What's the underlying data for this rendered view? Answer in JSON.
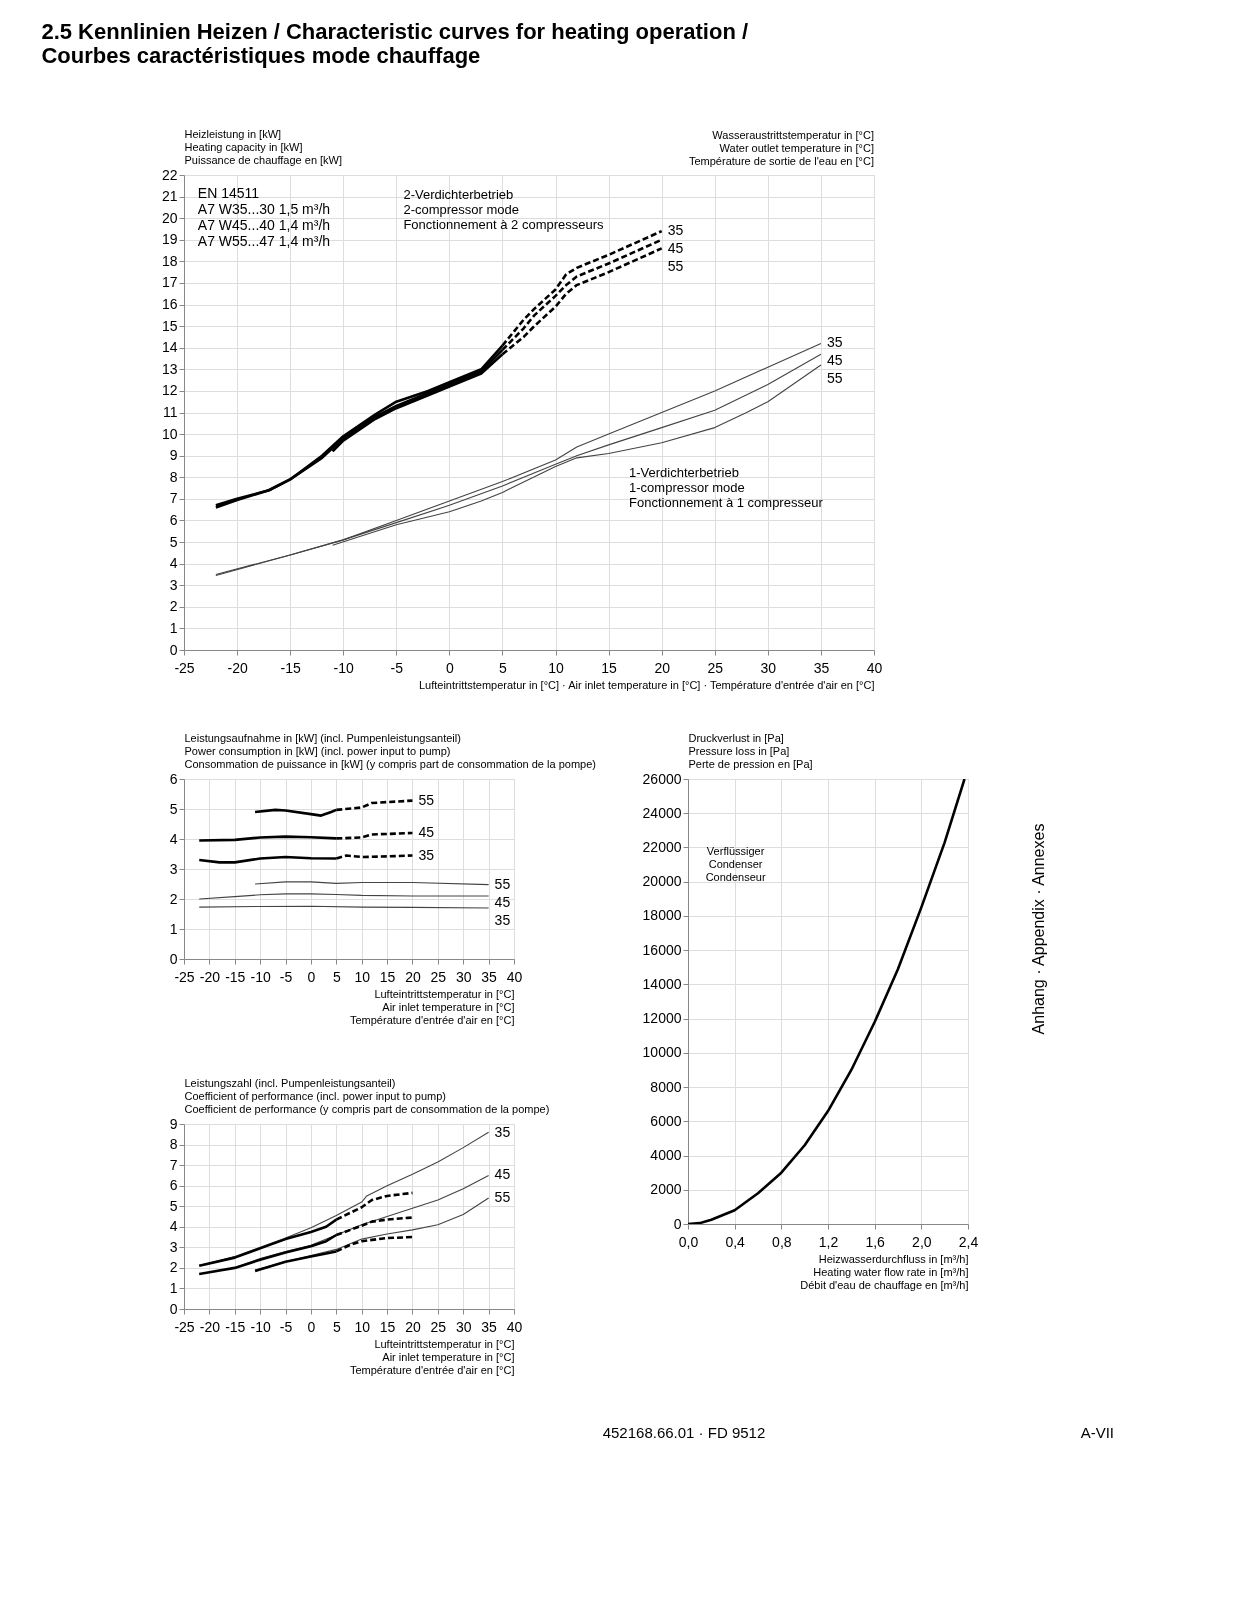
{
  "chart_data": [
    {
      "type": "line",
      "title": "2.5 Kennlinien Heizen / Characteristic curves for heating operation /\nCourbes caractéristiques mode chauffage",
      "ylabel": "Heizleistung in [kW]\nHeating capacity in [kW]\nPuissance de chauffage en [kW]",
      "xlabel": "Lufteintrittstemperatur in [°C] · Air inlet temperature in [°C] · Température d'entrée d'air en [°C]",
      "legend_title": "Wasseraustrittstemperatur in [°C]\nWater outlet temperature in [°C]\nTempérature de sortie de l'eau en [°C]",
      "xlim": [
        -25,
        40
      ],
      "xticks": [
        -25,
        -20,
        -15,
        -10,
        -5,
        0,
        5,
        10,
        15,
        20,
        25,
        30,
        35,
        40
      ],
      "ylim": [
        0,
        22
      ],
      "yticks": [
        0,
        1,
        2,
        3,
        4,
        5,
        6,
        7,
        8,
        9,
        10,
        11,
        12,
        13,
        14,
        15,
        16,
        17,
        18,
        19,
        20,
        21,
        22
      ],
      "grid": true,
      "series": [
        {
          "color": "#000000",
          "line_style": "solid",
          "x": [
            -22,
            -20,
            -17,
            -15,
            -12,
            -10,
            -7,
            -5,
            -2,
            0,
            3,
            5
          ],
          "values": [
            6.7,
            7.0,
            7.4,
            7.9,
            9.0,
            9.9,
            10.9,
            11.5,
            12.0,
            12.4,
            13.0,
            14.1
          ]
        },
        {
          "color": "#000000",
          "line_style": "solid",
          "x": [
            -22,
            -20,
            -17,
            -15,
            -12,
            -10,
            -7,
            -5,
            -2,
            0,
            3,
            5
          ],
          "values": [
            6.6,
            6.95,
            7.4,
            7.9,
            8.9,
            9.8,
            10.8,
            11.3,
            11.9,
            12.3,
            12.9,
            13.9
          ]
        },
        {
          "color": "#000000",
          "line_style": "solid",
          "x": [
            -11,
            -10,
            -7,
            -5,
            -2,
            0,
            3,
            5
          ],
          "values": [
            9.2,
            9.7,
            10.7,
            11.2,
            11.8,
            12.2,
            12.8,
            13.7
          ]
        },
        {
          "name": "35",
          "color": "#000000",
          "line_style": "dashed",
          "x": [
            5,
            7,
            8,
            10,
            11,
            12,
            15,
            20
          ],
          "values": [
            14.1,
            15.3,
            15.8,
            16.7,
            17.4,
            17.7,
            18.3,
            19.4
          ]
        },
        {
          "name": "45",
          "color": "#000000",
          "line_style": "dashed",
          "x": [
            5,
            7,
            8,
            10,
            11,
            12,
            15,
            20
          ],
          "values": [
            13.9,
            14.9,
            15.5,
            16.4,
            16.9,
            17.3,
            17.9,
            19.0
          ]
        },
        {
          "name": "55",
          "color": "#000000",
          "line_style": "dashed",
          "x": [
            5,
            7,
            8,
            10,
            11,
            12,
            15,
            20
          ],
          "values": [
            13.7,
            14.5,
            15.0,
            15.9,
            16.5,
            16.9,
            17.5,
            18.6
          ]
        },
        {
          "name": "35",
          "color": "#444444",
          "line_style": "solid",
          "x": [
            -22,
            -15,
            -10,
            -5,
            0,
            5,
            10,
            12,
            15,
            20,
            25,
            30,
            35
          ],
          "values": [
            3.5,
            4.4,
            5.1,
            6.0,
            6.9,
            7.8,
            8.8,
            9.4,
            10.0,
            11.0,
            12.0,
            13.1,
            14.2
          ]
        },
        {
          "name": "45",
          "color": "#444444",
          "line_style": "solid",
          "x": [
            -22,
            -15,
            -10,
            -5,
            0,
            5,
            10,
            12,
            15,
            20,
            25,
            30,
            35
          ],
          "values": [
            3.45,
            4.4,
            5.1,
            5.9,
            6.7,
            7.6,
            8.6,
            9.0,
            9.5,
            10.3,
            11.1,
            12.3,
            13.7
          ]
        },
        {
          "name": "55",
          "color": "#444444",
          "line_style": "solid",
          "x": [
            -11,
            -5,
            0,
            3,
            5,
            10,
            12,
            15,
            20,
            25,
            28,
            30,
            35
          ],
          "values": [
            4.85,
            5.8,
            6.4,
            6.9,
            7.3,
            8.5,
            8.9,
            9.1,
            9.6,
            10.3,
            11.0,
            11.5,
            13.2
          ]
        }
      ],
      "annotations": [
        "EN 14511\nA7 W35...30   1,5 m³/h\nA7 W45...40   1,4 m³/h\nA7 W55...47   1,4 m³/h",
        "2-Verdichterbetrieb\n2-compressor mode\nFonctionnement à 2 compresseurs",
        "1-Verdichterbetrieb\n1-compressor mode\nFonctionnement à 1 compresseur",
        "452168.66.01 · FD 9512",
        "A-VII",
        "Anhang · Appendix · Annexes"
      ]
    },
    {
      "type": "line",
      "ylabel": "Leistungsaufnahme in [kW] (incl. Pumpenleistungsanteil)\nPower consumption in [kW] (incl. power input to pump)\nConsommation de puissance in [kW] (y compris part de consommation de la pompe)",
      "xlabel": "Lufteintrittstemperatur in [°C]\nAir inlet temperature in [°C]\nTempérature d'entrée d'air en [°C]",
      "xlim": [
        -25,
        40
      ],
      "xticks": [
        -25,
        -20,
        -15,
        -10,
        -5,
        0,
        5,
        10,
        15,
        20,
        25,
        30,
        35,
        40
      ],
      "ylim": [
        0,
        6
      ],
      "yticks": [
        0,
        1,
        2,
        3,
        4,
        5,
        6
      ],
      "grid": true,
      "series": [
        {
          "color": "#000000",
          "line_style": "solid",
          "x": [
            -11,
            -7,
            -5,
            0,
            2,
            4,
            5
          ],
          "values": [
            4.9,
            4.97,
            4.95,
            4.83,
            4.78,
            4.9,
            4.97
          ]
        },
        {
          "color": "#000000",
          "line_style": "solid",
          "x": [
            -22,
            -15,
            -10,
            -5,
            0,
            5
          ],
          "values": [
            3.95,
            3.97,
            4.05,
            4.08,
            4.06,
            4.02
          ]
        },
        {
          "color": "#000000",
          "line_style": "solid",
          "x": [
            -22,
            -18,
            -15,
            -10,
            -5,
            0,
            5
          ],
          "values": [
            3.3,
            3.22,
            3.22,
            3.35,
            3.4,
            3.36,
            3.35
          ]
        },
        {
          "name": "55",
          "color": "#000000",
          "line_style": "dashed",
          "x": [
            5,
            10,
            12,
            20
          ],
          "values": [
            4.97,
            5.05,
            5.2,
            5.28
          ]
        },
        {
          "name": "45",
          "color": "#000000",
          "line_style": "dashed",
          "x": [
            5,
            10,
            12,
            20
          ],
          "values": [
            4.02,
            4.05,
            4.15,
            4.2
          ]
        },
        {
          "name": "35",
          "color": "#000000",
          "line_style": "dashed",
          "x": [
            5,
            7,
            10,
            15,
            20
          ],
          "values": [
            3.35,
            3.45,
            3.4,
            3.42,
            3.45
          ]
        },
        {
          "name": "55",
          "color": "#444444",
          "line_style": "solid",
          "x": [
            -11,
            -5,
            0,
            5,
            10,
            20,
            35
          ],
          "values": [
            2.5,
            2.57,
            2.57,
            2.52,
            2.55,
            2.55,
            2.48
          ]
        },
        {
          "name": "45",
          "color": "#444444",
          "line_style": "solid",
          "x": [
            -22,
            -15,
            -10,
            -5,
            0,
            5,
            10,
            20,
            35
          ],
          "values": [
            2.0,
            2.08,
            2.14,
            2.17,
            2.17,
            2.15,
            2.12,
            2.1,
            2.1
          ]
        },
        {
          "name": "35",
          "color": "#444444",
          "line_style": "solid",
          "x": [
            -22,
            -10,
            0,
            10,
            20,
            35
          ],
          "values": [
            1.73,
            1.75,
            1.76,
            1.73,
            1.72,
            1.7
          ]
        }
      ]
    },
    {
      "type": "line",
      "ylabel": "Leistungszahl (incl. Pumpenleistungsanteil)\nCoefficient of performance (incl. power input to pump)\nCoefficient de performance (y compris part de consommation de la pompe)",
      "xlabel": "Lufteintrittstemperatur in [°C]\nAir inlet temperature in [°C]\nTempérature d'entrée d'air en [°C]",
      "xlim": [
        -25,
        40
      ],
      "xticks": [
        -25,
        -20,
        -15,
        -10,
        -5,
        0,
        5,
        10,
        15,
        20,
        25,
        30,
        35,
        40
      ],
      "ylim": [
        0,
        9
      ],
      "yticks": [
        0,
        1,
        2,
        3,
        4,
        5,
        6,
        7,
        8,
        9
      ],
      "grid": true,
      "series": [
        {
          "name": "35",
          "color": "#444444",
          "line_style": "solid",
          "x": [
            -22,
            -15,
            -10,
            -5,
            0,
            5,
            10,
            11,
            15,
            20,
            25,
            30,
            35
          ],
          "values": [
            2.1,
            2.55,
            3.0,
            3.45,
            3.95,
            4.55,
            5.2,
            5.5,
            6.0,
            6.55,
            7.15,
            7.85,
            8.6
          ]
        },
        {
          "name": "45",
          "color": "#444444",
          "line_style": "solid",
          "x": [
            -22,
            -15,
            -10,
            -5,
            0,
            5,
            10,
            15,
            20,
            25,
            30,
            35
          ],
          "values": [
            1.7,
            2.0,
            2.45,
            2.8,
            3.1,
            3.6,
            4.1,
            4.5,
            4.9,
            5.3,
            5.85,
            6.5
          ]
        },
        {
          "name": "55",
          "color": "#444444",
          "line_style": "solid",
          "x": [
            -11,
            -5,
            0,
            5,
            10,
            15,
            20,
            25,
            30,
            35
          ],
          "values": [
            1.9,
            2.3,
            2.6,
            2.9,
            3.4,
            3.65,
            3.85,
            4.1,
            4.6,
            5.4
          ]
        },
        {
          "color": "#000000",
          "line_style": "solid",
          "x": [
            -22,
            -15,
            -10,
            -5,
            0,
            3,
            5
          ],
          "values": [
            2.1,
            2.5,
            2.95,
            3.4,
            3.75,
            4.0,
            4.35
          ]
        },
        {
          "color": "#000000",
          "line_style": "solid",
          "x": [
            -22,
            -15,
            -10,
            -5,
            0,
            3,
            5
          ],
          "values": [
            1.7,
            2.0,
            2.4,
            2.75,
            3.05,
            3.3,
            3.6
          ]
        },
        {
          "color": "#000000",
          "line_style": "solid",
          "x": [
            -11,
            -5,
            0,
            5
          ],
          "values": [
            1.85,
            2.3,
            2.55,
            2.8
          ]
        },
        {
          "color": "#000000",
          "line_style": "dashed",
          "x": [
            5,
            10,
            12,
            15,
            20
          ],
          "values": [
            4.35,
            4.95,
            5.3,
            5.5,
            5.65
          ]
        },
        {
          "color": "#000000",
          "line_style": "dashed",
          "x": [
            5,
            10,
            12,
            15,
            20
          ],
          "values": [
            3.6,
            4.05,
            4.25,
            4.35,
            4.45
          ]
        },
        {
          "color": "#000000",
          "line_style": "dashed",
          "x": [
            5,
            8,
            10,
            15,
            20
          ],
          "values": [
            2.8,
            3.15,
            3.3,
            3.45,
            3.5
          ]
        }
      ]
    },
    {
      "type": "line",
      "ylabel": "Druckverlust in [Pa]\nPressure loss in [Pa]\nPerte de pression en [Pa]",
      "xlabel": "Heizwasserdurchfluss in [m³/h]\nHeating water flow rate in [m³/h]\nDébit d'eau de chauffage en [m³/h]",
      "xlim": [
        0,
        2.4
      ],
      "xticks": [
        {
          "value": 0,
          "label": "0,0"
        },
        {
          "value": 0.4,
          "label": "0,4"
        },
        {
          "value": 0.8,
          "label": "0,8"
        },
        {
          "value": 1.2,
          "label": "1,2"
        },
        {
          "value": 1.6,
          "label": "1,6"
        },
        {
          "value": 2.0,
          "label": "2,0"
        },
        {
          "value": 2.4,
          "label": "2,4"
        }
      ],
      "ylim": [
        0,
        26000
      ],
      "yticks": [
        0,
        2000,
        4000,
        6000,
        8000,
        10000,
        12000,
        14000,
        16000,
        18000,
        20000,
        22000,
        24000,
        26000
      ],
      "grid": true,
      "series": [
        {
          "color": "#000000",
          "line_style": "solid",
          "x": [
            0,
            0.1,
            0.2,
            0.4,
            0.6,
            0.8,
            1.0,
            1.2,
            1.4,
            1.6,
            1.8,
            2.0,
            2.2,
            2.37
          ],
          "values": [
            0,
            50,
            250,
            800,
            1800,
            3000,
            4600,
            6600,
            9000,
            11800,
            14900,
            18500,
            22300,
            26000
          ]
        }
      ],
      "annotations": [
        "Verflüssiger\nCondenser\nCondenseur"
      ]
    }
  ]
}
